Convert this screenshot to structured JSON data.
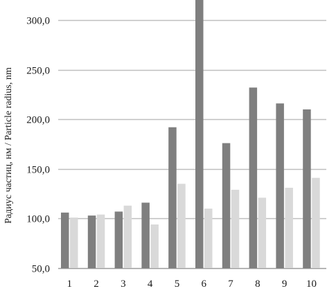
{
  "chart_data": {
    "type": "bar",
    "title": "",
    "xlabel": "",
    "ylabel": "Радиус частиц, нм / Particle radius, nm",
    "categories": [
      "1",
      "2",
      "3",
      "4",
      "5",
      "6",
      "7",
      "8",
      "9",
      "10"
    ],
    "series": [
      {
        "color": "#7f7f7f",
        "values": [
          106,
          103,
          107,
          116,
          192,
          330,
          176,
          232,
          216,
          210
        ]
      },
      {
        "color": "#d9d9d9",
        "values": [
          101,
          104,
          113,
          94,
          135,
          110,
          129,
          121,
          131,
          141
        ]
      }
    ],
    "ylim": [
      50,
      320
    ],
    "yticks": [
      50,
      100,
      150,
      200,
      250,
      300
    ],
    "ytick_labels": [
      "50,0",
      "100,0",
      "150,0",
      "200,0",
      "250,0",
      "300,0"
    ],
    "grid": true,
    "gridline_color": "#bfbfbf"
  }
}
